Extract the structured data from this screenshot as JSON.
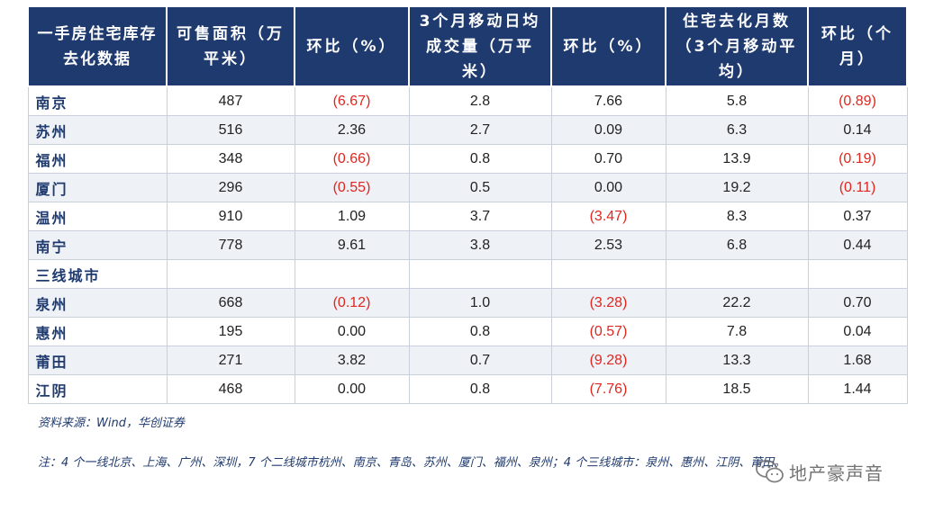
{
  "headers": [
    "一手房住宅库存去化数据",
    "可售面积（万平米）",
    "环比（%）",
    "3个月移动日均成交量（万平米）",
    "环比（%）",
    "住宅去化月数（3个月移动平均）",
    "环比（个月）"
  ],
  "rows": [
    {
      "city": "南京",
      "area": "487",
      "area_chg": "(6.67)",
      "vol": "2.8",
      "vol_chg": "7.66",
      "months": "5.8",
      "months_chg": "(0.89)"
    },
    {
      "city": "苏州",
      "area": "516",
      "area_chg": "2.36",
      "vol": "2.7",
      "vol_chg": "0.09",
      "months": "6.3",
      "months_chg": "0.14"
    },
    {
      "city": "福州",
      "area": "348",
      "area_chg": "(0.66)",
      "vol": "0.8",
      "vol_chg": "0.70",
      "months": "13.9",
      "months_chg": "(0.19)"
    },
    {
      "city": "厦门",
      "area": "296",
      "area_chg": "(0.55)",
      "vol": "0.5",
      "vol_chg": "0.00",
      "months": "19.2",
      "months_chg": "(0.11)"
    },
    {
      "city": "温州",
      "area": "910",
      "area_chg": "1.09",
      "vol": "3.7",
      "vol_chg": "(3.47)",
      "months": "8.3",
      "months_chg": "0.37"
    },
    {
      "city": "南宁",
      "area": "778",
      "area_chg": "9.61",
      "vol": "3.8",
      "vol_chg": "2.53",
      "months": "6.8",
      "months_chg": "0.44"
    },
    {
      "city": "三线城市",
      "area": "",
      "area_chg": "",
      "vol": "",
      "vol_chg": "",
      "months": "",
      "months_chg": ""
    },
    {
      "city": "泉州",
      "area": "668",
      "area_chg": "(0.12)",
      "vol": "1.0",
      "vol_chg": "(3.28)",
      "months": "22.2",
      "months_chg": "0.70"
    },
    {
      "city": "惠州",
      "area": "195",
      "area_chg": "0.00",
      "vol": "0.8",
      "vol_chg": "(0.57)",
      "months": "7.8",
      "months_chg": "0.04"
    },
    {
      "city": "莆田",
      "area": "271",
      "area_chg": "3.82",
      "vol": "0.7",
      "vol_chg": "(9.28)",
      "months": "13.3",
      "months_chg": "1.68"
    },
    {
      "city": "江阴",
      "area": "468",
      "area_chg": "0.00",
      "vol": "0.8",
      "vol_chg": "(7.76)",
      "months": "18.5",
      "months_chg": "1.44"
    }
  ],
  "source": "资料来源：Wind，华创证券",
  "note": "注：4 个一线北京、上海、广州、深圳，7 个二线城市杭州、南京、青岛、苏州、厦门、福州、泉州；4 个三线城市：泉州、惠州、江阴、莆田。",
  "watermark": {
    "text": "地产豪声音",
    "icon": "wechat-icon"
  },
  "colors": {
    "header_bg": "#1f3a6e",
    "negative": "#e0261f",
    "row_shade": "#eef1f6",
    "city_text": "#1f3a6e"
  }
}
